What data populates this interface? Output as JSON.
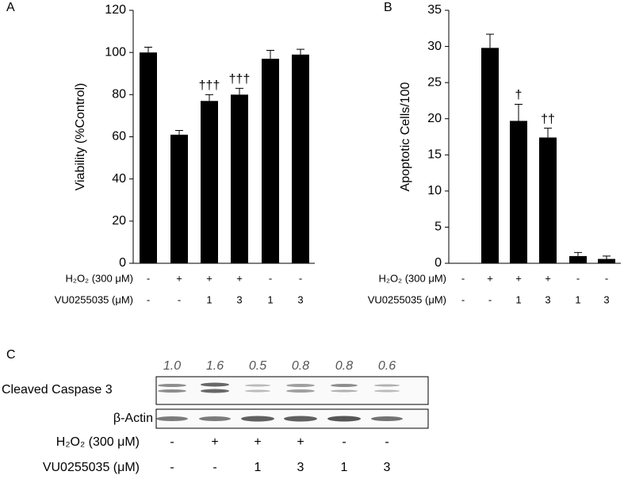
{
  "chart_data": [
    {
      "type": "bar",
      "panel": "A",
      "ylabel": "Viability (%Control)",
      "color": "#000000",
      "values": [
        100,
        61,
        77,
        80,
        97,
        99
      ],
      "errors": [
        2.5,
        2,
        3,
        3,
        4,
        2.5
      ],
      "value_annotations": [
        null,
        null,
        "†††",
        "†††",
        null,
        null
      ],
      "ylim": [
        0,
        120
      ],
      "yticks": [
        0,
        20,
        40,
        60,
        80,
        100,
        120
      ],
      "treatments": [
        {
          "label": "H₂O₂ (300 μM)",
          "values": [
            "-",
            "+",
            "+",
            "+",
            "-",
            "-"
          ]
        },
        {
          "label": "VU0255035 (μM)",
          "values": [
            "-",
            "-",
            "1",
            "3",
            "1",
            "3"
          ]
        }
      ]
    },
    {
      "type": "bar",
      "panel": "B",
      "ylabel": "Apoptotic Cells/100",
      "color": "#000000",
      "values": [
        0,
        29.8,
        19.7,
        17.4,
        1.0,
        0.6
      ],
      "errors": [
        0,
        1.9,
        2.3,
        1.3,
        0.5,
        0.4
      ],
      "value_annotations": [
        null,
        null,
        "†",
        "††",
        null,
        null
      ],
      "ylim": [
        0,
        35
      ],
      "yticks": [
        0,
        5,
        10,
        15,
        20,
        25,
        30,
        35
      ],
      "treatments": [
        {
          "label": "H₂O₂ (300 μM)",
          "values": [
            "-",
            "+",
            "+",
            "+",
            "-",
            "-"
          ]
        },
        {
          "label": "VU0255035 (μM)",
          "values": [
            "-",
            "-",
            "1",
            "3",
            "1",
            "3"
          ]
        }
      ]
    }
  ],
  "blot": {
    "panel": "C",
    "densitometry": [
      "1.0",
      "1.6",
      "0.5",
      "0.8",
      "0.8",
      "0.6"
    ],
    "rows": [
      "Cleaved Caspase 3",
      "β-Actin"
    ],
    "treatments": [
      {
        "label": "H₂O₂ (300 μM)",
        "values": [
          "-",
          "+",
          "+",
          "+",
          "-",
          "-"
        ]
      },
      {
        "label": "VU0255035 (μM)",
        "values": [
          "-",
          "-",
          "1",
          "3",
          "1",
          "3"
        ]
      }
    ]
  }
}
